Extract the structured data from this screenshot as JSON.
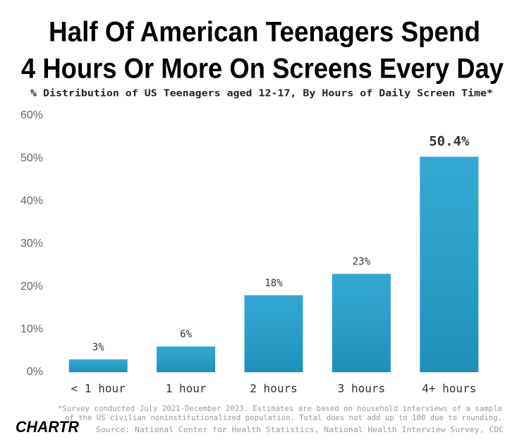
{
  "chart_data": {
    "type": "bar",
    "title": [
      "Half Of American Teenagers Spend",
      "4 Hours Or More On Screens Every Day"
    ],
    "subtitle": "% Distribution of US Teenagers aged 12-17, By Hours of Daily Screen Time*",
    "categories": [
      "< 1 hour",
      "1 hour",
      "2 hours",
      "3 hours",
      "4+ hours"
    ],
    "values": [
      3,
      6,
      18,
      23,
      50.4
    ],
    "value_labels": [
      "3%",
      "6%",
      "18%",
      "23%",
      "50.4%"
    ],
    "color": "#22a0d0",
    "ylim": [
      0,
      60
    ],
    "yticks": [
      {
        "value": 0,
        "label": "0%"
      },
      {
        "value": 10,
        "label": "10%"
      },
      {
        "value": 20,
        "label": "20%"
      },
      {
        "value": 30,
        "label": "30%"
      },
      {
        "value": 40,
        "label": "40%"
      },
      {
        "value": 50,
        "label": "50%"
      },
      {
        "value": 60,
        "label": "60%"
      }
    ],
    "grid": false
  },
  "footnote": [
    "*Survey conducted July 2021-December 2023. Estimates are based on household interviews of a sample",
    "of the US civilian noninstitutionalized population. Total does not add up to 100 due to rounding."
  ],
  "source": "Source: National Center for Health Statistics, National Health Interview Survey, CDC",
  "logo": "CHARTR"
}
